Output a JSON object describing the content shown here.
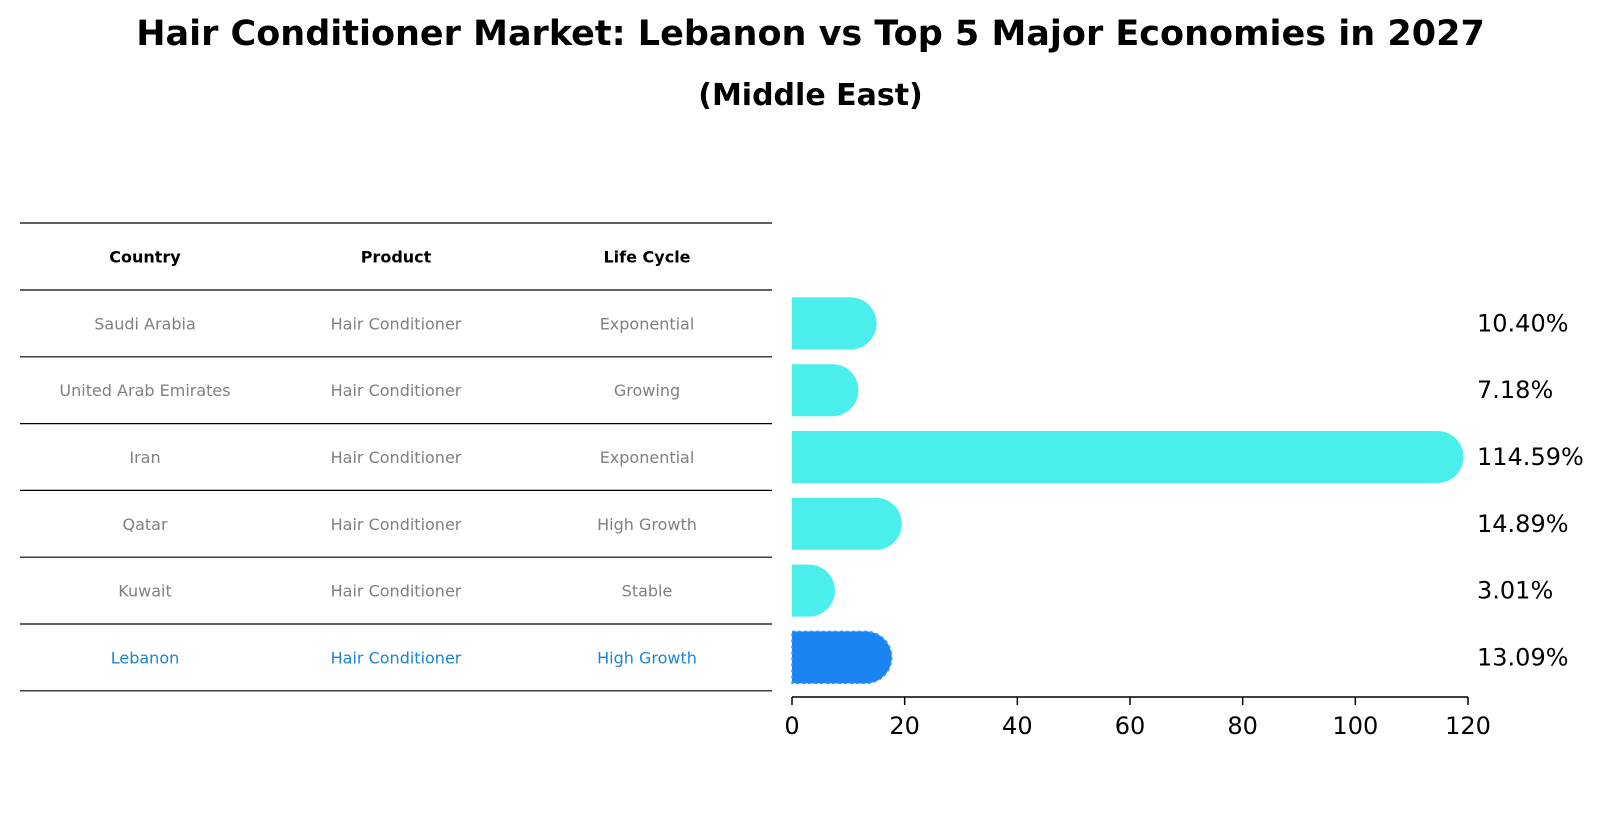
{
  "title": "Hair Conditioner Market: Lebanon vs Top 5 Major Economies in 2027",
  "subtitle": "(Middle East)",
  "table": {
    "headers": [
      "Country",
      "Product",
      "Life Cycle"
    ],
    "rows": [
      {
        "country": "Saudi Arabia",
        "product": "Hair Conditioner",
        "life_cycle": "Exponential",
        "highlight": false
      },
      {
        "country": "United Arab Emirates",
        "product": "Hair Conditioner",
        "life_cycle": "Growing",
        "highlight": false
      },
      {
        "country": "Iran",
        "product": "Hair Conditioner",
        "life_cycle": "Exponential",
        "highlight": false
      },
      {
        "country": "Qatar",
        "product": "Hair Conditioner",
        "life_cycle": "High Growth",
        "highlight": false
      },
      {
        "country": "Kuwait",
        "product": "Hair Conditioner",
        "life_cycle": "Stable",
        "highlight": false
      },
      {
        "country": "Lebanon",
        "product": "Hair Conditioner",
        "life_cycle": "High Growth",
        "highlight": true
      }
    ]
  },
  "colors": {
    "bar": "#4aeeea",
    "highlight_bar": "#1a85f0",
    "highlight_text": "#1a85d0",
    "cell_text": "#808080"
  },
  "chart_data": {
    "type": "bar",
    "orientation": "horizontal",
    "categories": [
      "Saudi Arabia",
      "United Arab Emirates",
      "Iran",
      "Qatar",
      "Kuwait",
      "Lebanon"
    ],
    "values": [
      10.4,
      7.18,
      114.59,
      14.89,
      3.01,
      13.09
    ],
    "value_labels": [
      "10.40%",
      "7.18%",
      "114.59%",
      "14.89%",
      "3.01%",
      "13.09%"
    ],
    "xlim": [
      0,
      120
    ],
    "xticks": [
      0,
      20,
      40,
      60,
      80,
      100,
      120
    ],
    "highlight_category": "Lebanon",
    "grid": false
  }
}
